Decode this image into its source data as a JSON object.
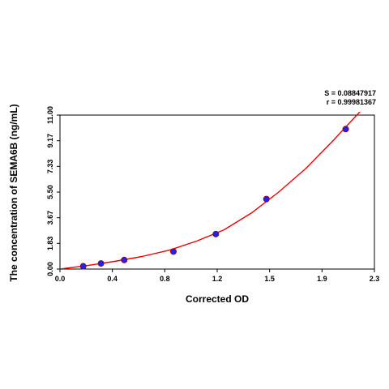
{
  "chart_data": {
    "type": "scatter",
    "title": "",
    "xlabel": "Corrected OD",
    "ylabel": "The concentration of SEMA6B (ng/mL)",
    "xlim": [
      0.0,
      2.3
    ],
    "ylim": [
      0.0,
      11.0
    ],
    "x_ticks": [
      "0.0",
      "0.4",
      "0.8",
      "1.2",
      "1.5",
      "1.9",
      "2.3"
    ],
    "y_ticks": [
      "0.00",
      "1.83",
      "3.67",
      "5.50",
      "7.33",
      "9.17",
      "11.00"
    ],
    "grid": false,
    "legend": "none",
    "points": {
      "x": [
        0.17,
        0.3,
        0.47,
        0.83,
        1.14,
        1.51,
        2.09
      ],
      "y": [
        0.2,
        0.4,
        0.65,
        1.25,
        2.5,
        5.0,
        10.0
      ]
    },
    "fit_curve": {
      "x": [
        0.0,
        0.2,
        0.4,
        0.6,
        0.8,
        1.0,
        1.2,
        1.4,
        1.6,
        1.8,
        2.0,
        2.2
      ],
      "y": [
        0.0,
        0.25,
        0.55,
        0.9,
        1.35,
        2.0,
        2.8,
        4.0,
        5.5,
        7.2,
        9.2,
        11.3
      ]
    },
    "annotations": [
      "S = 0.08847917",
      "r = 0.99981367"
    ],
    "colors": {
      "points": "#2222ee",
      "points_edge": "#990000",
      "curve": "#ee0000",
      "axis": "#000000"
    }
  }
}
